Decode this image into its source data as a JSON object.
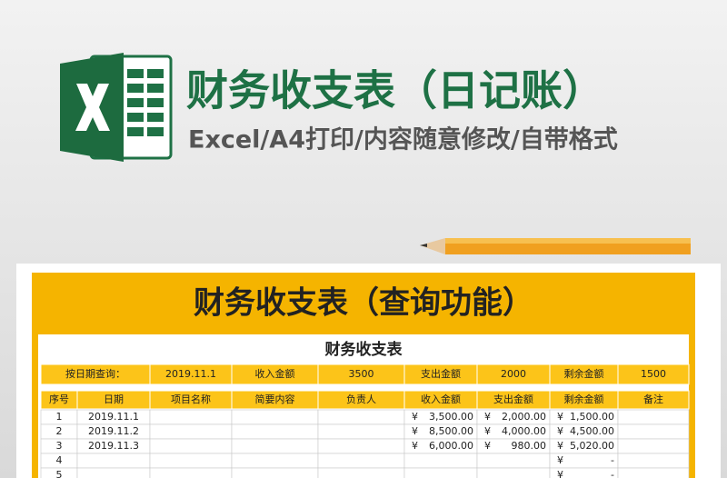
{
  "header": {
    "title": "财务收支表（日记账）",
    "subtitle": "Excel/A4打印/内容随意修改/自带格式"
  },
  "sheet": {
    "banner": "财务收支表（查询功能）",
    "title": "财务收支表",
    "query": [
      "按日期查询：",
      "2019.11.1",
      "收入金额",
      "3500",
      "支出金额",
      "2000",
      "剩余金额",
      "1500"
    ],
    "columns": [
      "序号",
      "日期",
      "项目名称",
      "简要内容",
      "负责人",
      "收入金额",
      "支出金额",
      "剩余金额",
      "备注"
    ],
    "rows": [
      {
        "no": "1",
        "date": "2019.11.1",
        "income": [
          "¥",
          "3,500.00"
        ],
        "expense": [
          "¥",
          "2,000.00"
        ],
        "balance": [
          "¥",
          "1,500.00"
        ]
      },
      {
        "no": "2",
        "date": "2019.11.2",
        "income": [
          "¥",
          "8,500.00"
        ],
        "expense": [
          "¥",
          "4,000.00"
        ],
        "balance": [
          "¥",
          "4,500.00"
        ]
      },
      {
        "no": "3",
        "date": "2019.11.3",
        "income": [
          "¥",
          "6,000.00"
        ],
        "expense": [
          "¥",
          "980.00"
        ],
        "balance": [
          "¥",
          "5,020.00"
        ]
      },
      {
        "no": "4",
        "balance": [
          "¥",
          "-"
        ]
      },
      {
        "no": "5",
        "balance": [
          "¥",
          "-"
        ]
      }
    ]
  }
}
